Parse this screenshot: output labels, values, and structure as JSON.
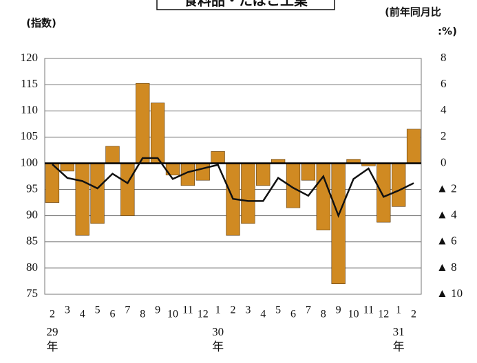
{
  "chart_data": {
    "type": "bar",
    "title": "食料品・たばこ工業",
    "y_label": "(指数)",
    "y2_label": [
      "(前年同月比",
      ":%)"
    ],
    "categories": [
      "2",
      "3",
      "4",
      "5",
      "6",
      "7",
      "8",
      "9",
      "10",
      "11",
      "12",
      "1",
      "2",
      "3",
      "4",
      "5",
      "6",
      "7",
      "8",
      "9",
      "10",
      "11",
      "12",
      "1",
      "2"
    ],
    "year_labels": [
      "29年",
      null,
      null,
      null,
      null,
      null,
      null,
      null,
      null,
      null,
      null,
      "30年",
      null,
      null,
      null,
      null,
      null,
      null,
      null,
      null,
      null,
      null,
      null,
      "31年",
      null
    ],
    "series": [
      {
        "type": "bar",
        "axis": "y2",
        "color": "#d08a22",
        "values": [
          -3.0,
          -0.6,
          -5.5,
          -4.6,
          1.3,
          -4.0,
          6.1,
          4.6,
          -0.9,
          -1.7,
          -1.3,
          0.9,
          -5.5,
          -4.6,
          -1.7,
          0.3,
          -3.4,
          -1.3,
          -5.1,
          -9.2,
          0.3,
          -0.2,
          -4.5,
          -3.3,
          2.6
        ]
      },
      {
        "type": "line",
        "axis": "y",
        "color": "#111111",
        "values": [
          99.8,
          97.2,
          96.6,
          95.2,
          98.0,
          96.2,
          101.0,
          101.0,
          97.0,
          98.3,
          99.0,
          99.7,
          93.2,
          92.8,
          92.8,
          97.2,
          95.3,
          93.8,
          97.5,
          90.0,
          97.0,
          99.0,
          93.6,
          94.8,
          96.2
        ]
      }
    ],
    "ylim": [
      75,
      120
    ],
    "yticks": [
      75,
      80,
      85,
      90,
      95,
      100,
      105,
      110,
      115,
      120
    ],
    "y2lim": [
      -10,
      8
    ],
    "y2ticks": [
      {
        "value": -10,
        "label": "▲ 10"
      },
      {
        "value": -8,
        "label": "▲ 8"
      },
      {
        "value": -6,
        "label": "▲ 6"
      },
      {
        "value": -4,
        "label": "▲ 4"
      },
      {
        "value": -2,
        "label": "▲ 2"
      },
      0,
      2,
      4,
      6,
      8
    ],
    "grid": true
  }
}
